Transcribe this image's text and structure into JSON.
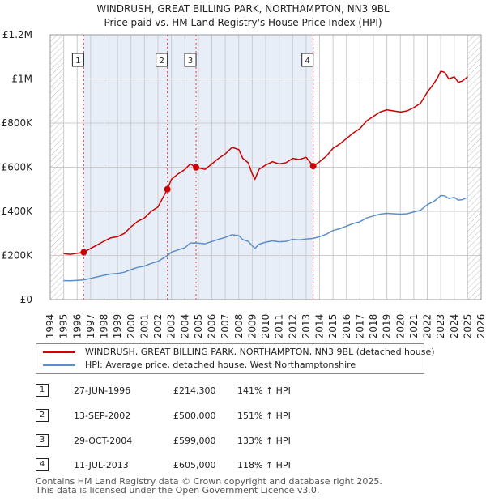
{
  "title_line1": "WINDRUSH, GREAT BILLING PARK, NORTHAMPTON, NN3 9BL",
  "title_line2": "Price paid vs. HM Land Registry's House Price Index (HPI)",
  "colors": {
    "property": "#cc0000",
    "hpi": "#5b8fc9",
    "shade": "#e8eef8",
    "grid": "#cccccc",
    "marker_line": "#dd4444"
  },
  "chart_data": {
    "type": "line",
    "title": "WINDRUSH, GREAT BILLING PARK, NORTHAMPTON, NN3 9BL — Price paid vs. HM Land Registry's House Price Index (HPI)",
    "xlabel": "",
    "ylabel": "",
    "xlim": [
      1994,
      2026
    ],
    "ylim": [
      0,
      1200000
    ],
    "x_ticks": [
      "1994",
      "1995",
      "1996",
      "1997",
      "1998",
      "1999",
      "2000",
      "2001",
      "2002",
      "2003",
      "2004",
      "2005",
      "2006",
      "2007",
      "2008",
      "2009",
      "2010",
      "2011",
      "2012",
      "2013",
      "2014",
      "2015",
      "2016",
      "2017",
      "2018",
      "2019",
      "2020",
      "2021",
      "2022",
      "2023",
      "2024",
      "2025",
      "2026"
    ],
    "y_ticks": [
      {
        "value": 0,
        "label": "£0"
      },
      {
        "value": 200000,
        "label": "£200K"
      },
      {
        "value": 400000,
        "label": "£400K"
      },
      {
        "value": 600000,
        "label": "£600K"
      },
      {
        "value": 800000,
        "label": "£800K"
      },
      {
        "value": 1000000,
        "label": "£1M"
      },
      {
        "value": 1200000,
        "label": "£1.2M"
      }
    ],
    "hatched_regions": [
      [
        1994,
        1995
      ],
      [
        2025,
        2026
      ]
    ],
    "series": [
      {
        "name": "WINDRUSH, GREAT BILLING PARK, NORTHAMPTON, NN3 9BL (detached house)",
        "color": "#cc0000",
        "x": [
          1995.0,
          1995.5,
          1996.0,
          1996.49,
          1997.0,
          1997.5,
          1998.0,
          1998.5,
          1999.0,
          1999.5,
          2000.0,
          2000.5,
          2001.0,
          2001.5,
          2002.0,
          2002.7,
          2003.0,
          2003.5,
          2004.0,
          2004.4,
          2004.83,
          2005.5,
          2006.0,
          2006.5,
          2007.0,
          2007.5,
          2008.0,
          2008.3,
          2008.7,
          2009.0,
          2009.2,
          2009.5,
          2010.0,
          2010.5,
          2011.0,
          2011.5,
          2012.0,
          2012.5,
          2013.0,
          2013.53,
          2014.0,
          2014.5,
          2015.0,
          2015.5,
          2016.0,
          2016.5,
          2017.0,
          2017.5,
          2018.0,
          2018.5,
          2019.0,
          2019.5,
          2020.0,
          2020.5,
          2021.0,
          2021.5,
          2022.0,
          2022.5,
          2022.8,
          2023.0,
          2023.3,
          2023.6,
          2024.0,
          2024.3,
          2024.6,
          2025.0
        ],
        "values": [
          208000,
          205000,
          210000,
          214300,
          232000,
          248000,
          265000,
          280000,
          285000,
          300000,
          330000,
          355000,
          370000,
          400000,
          420000,
          500000,
          545000,
          570000,
          590000,
          615000,
          599000,
          590000,
          615000,
          640000,
          660000,
          690000,
          680000,
          640000,
          620000,
          570000,
          545000,
          590000,
          610000,
          625000,
          615000,
          620000,
          640000,
          635000,
          645000,
          605000,
          625000,
          650000,
          685000,
          705000,
          730000,
          755000,
          775000,
          810000,
          830000,
          850000,
          860000,
          855000,
          850000,
          855000,
          870000,
          890000,
          940000,
          980000,
          1010000,
          1035000,
          1030000,
          1000000,
          1010000,
          985000,
          990000,
          1010000
        ]
      },
      {
        "name": "HPI: Average price, detached house, West Northamptonshire",
        "color": "#5b8fc9",
        "x": [
          1995.0,
          1995.5,
          1996.0,
          1996.49,
          1997.0,
          1997.5,
          1998.0,
          1998.5,
          1999.0,
          1999.5,
          2000.0,
          2000.5,
          2001.0,
          2001.5,
          2002.0,
          2002.7,
          2003.0,
          2003.5,
          2004.0,
          2004.4,
          2004.83,
          2005.5,
          2006.0,
          2006.5,
          2007.0,
          2007.5,
          2008.0,
          2008.3,
          2008.7,
          2009.0,
          2009.2,
          2009.5,
          2010.0,
          2010.5,
          2011.0,
          2011.5,
          2012.0,
          2012.5,
          2013.0,
          2013.53,
          2014.0,
          2014.5,
          2015.0,
          2015.5,
          2016.0,
          2016.5,
          2017.0,
          2017.5,
          2018.0,
          2018.5,
          2019.0,
          2019.5,
          2020.0,
          2020.5,
          2021.0,
          2021.5,
          2022.0,
          2022.5,
          2022.8,
          2023.0,
          2023.3,
          2023.6,
          2024.0,
          2024.3,
          2024.6,
          2025.0
        ],
        "values": [
          86000,
          85000,
          87000,
          89000,
          96000,
          103000,
          110000,
          116000,
          118000,
          124000,
          136000,
          146000,
          152000,
          164000,
          173000,
          199000,
          215000,
          225000,
          235000,
          256000,
          257000,
          253000,
          263000,
          273000,
          282000,
          294000,
          290000,
          272000,
          264000,
          244000,
          232000,
          251000,
          260000,
          266000,
          262000,
          264000,
          273000,
          271000,
          275000,
          277000,
          285000,
          296000,
          313000,
          321000,
          333000,
          345000,
          353000,
          370000,
          379000,
          387000,
          391000,
          389000,
          387000,
          389000,
          397000,
          405000,
          430000,
          446000,
          460000,
          472000,
          470000,
          458000,
          463000,
          451000,
          453000,
          463000
        ]
      }
    ],
    "transactions": [
      {
        "num": "1",
        "x": 1996.49,
        "price": 214300
      },
      {
        "num": "2",
        "x": 2002.7,
        "price": 500000
      },
      {
        "num": "3",
        "x": 2004.83,
        "price": 599000
      },
      {
        "num": "4",
        "x": 2013.53,
        "price": 605000
      }
    ]
  },
  "legend": {
    "property_label": "WINDRUSH, GREAT BILLING PARK, NORTHAMPTON, NN3 9BL (detached house)",
    "hpi_label": "HPI: Average price, detached house, West Northamptonshire"
  },
  "table": [
    {
      "num": "1",
      "date": "27-JUN-1996",
      "price": "£214,300",
      "hpi": "141% ↑ HPI"
    },
    {
      "num": "2",
      "date": "13-SEP-2002",
      "price": "£500,000",
      "hpi": "151% ↑ HPI"
    },
    {
      "num": "3",
      "date": "29-OCT-2004",
      "price": "£599,000",
      "hpi": "133% ↑ HPI"
    },
    {
      "num": "4",
      "date": "11-JUL-2013",
      "price": "£605,000",
      "hpi": "118% ↑ HPI"
    }
  ],
  "footer_line1": "Contains HM Land Registry data © Crown copyright and database right 2025.",
  "footer_line2": "This data is licensed under the Open Government Licence v3.0."
}
